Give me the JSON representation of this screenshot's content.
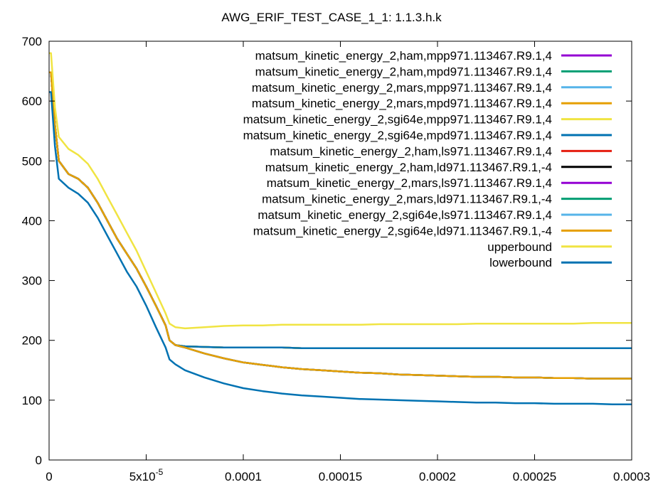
{
  "chart_data": {
    "type": "line",
    "title": "AWG_ERIF_TEST_CASE_1_1: 1.1.3.h.k",
    "xlabel": "",
    "ylabel": "",
    "xlim": [
      0,
      0.0003
    ],
    "ylim": [
      0,
      700
    ],
    "grid": false,
    "legend_position": "top-right",
    "x_ticks": [
      {
        "value": 0,
        "label": "0"
      },
      {
        "value": 5e-05,
        "label": "5x10",
        "sup": "-5"
      },
      {
        "value": 0.0001,
        "label": "0.0001"
      },
      {
        "value": 0.00015,
        "label": "0.00015"
      },
      {
        "value": 0.0002,
        "label": "0.0002"
      },
      {
        "value": 0.00025,
        "label": "0.00025"
      },
      {
        "value": 0.0003,
        "label": "0.0003"
      }
    ],
    "y_ticks": [
      {
        "value": 0,
        "label": "0"
      },
      {
        "value": 100,
        "label": "100"
      },
      {
        "value": 200,
        "label": "200"
      },
      {
        "value": 300,
        "label": "300"
      },
      {
        "value": 400,
        "label": "400"
      },
      {
        "value": 500,
        "label": "500"
      },
      {
        "value": 600,
        "label": "600"
      },
      {
        "value": 700,
        "label": "700"
      }
    ],
    "x": [
      0,
      1e-06,
      3e-06,
      5e-06,
      1e-05,
      1.5e-05,
      2e-05,
      2.5e-05,
      3e-05,
      3.5e-05,
      4e-05,
      4.5e-05,
      5e-05,
      5.5e-05,
      6e-05,
      6.2e-05,
      6.5e-05,
      7e-05,
      8e-05,
      9e-05,
      0.0001,
      0.00011,
      0.00012,
      0.00013,
      0.00014,
      0.00015,
      0.00016,
      0.00017,
      0.00018,
      0.00019,
      0.0002,
      0.00021,
      0.00022,
      0.00023,
      0.00024,
      0.00025,
      0.00026,
      0.00027,
      0.00028,
      0.00029,
      0.0003
    ],
    "series": [
      {
        "name": "matsum_kinetic_energy_2,ham,mpp971.113467.R9.1,4",
        "color": "#9400d3",
        "values": [
          648,
          648,
          560,
          500,
          478,
          470,
          455,
          430,
          400,
          370,
          345,
          320,
          290,
          258,
          225,
          200,
          192,
          190,
          189,
          188,
          188,
          188,
          188,
          187,
          187,
          187,
          187,
          187,
          187,
          187,
          187,
          187,
          187,
          187,
          187,
          187,
          187,
          187,
          187,
          187,
          187
        ]
      },
      {
        "name": "matsum_kinetic_energy_2,ham,mpd971.113467.R9.1,4",
        "color": "#009e73",
        "values": [
          648,
          648,
          560,
          500,
          478,
          470,
          455,
          430,
          400,
          370,
          345,
          320,
          290,
          258,
          225,
          200,
          192,
          190,
          189,
          188,
          188,
          188,
          188,
          187,
          187,
          187,
          187,
          187,
          187,
          187,
          187,
          187,
          187,
          187,
          187,
          187,
          187,
          187,
          187,
          187,
          187
        ]
      },
      {
        "name": "matsum_kinetic_energy_2,mars,mpp971.113467.R9.1,4",
        "color": "#56b4e9",
        "values": [
          648,
          648,
          560,
          500,
          478,
          470,
          455,
          430,
          400,
          370,
          345,
          320,
          290,
          258,
          225,
          200,
          192,
          190,
          189,
          188,
          188,
          188,
          188,
          187,
          187,
          187,
          187,
          187,
          187,
          187,
          187,
          187,
          187,
          187,
          187,
          187,
          187,
          187,
          187,
          187,
          187
        ]
      },
      {
        "name": "matsum_kinetic_energy_2,mars,mpd971.113467.R9.1,4",
        "color": "#e69f00",
        "values": [
          648,
          648,
          560,
          500,
          478,
          470,
          455,
          430,
          400,
          370,
          345,
          320,
          290,
          258,
          225,
          200,
          192,
          190,
          189,
          188,
          188,
          188,
          188,
          187,
          187,
          187,
          187,
          187,
          187,
          187,
          187,
          187,
          187,
          187,
          187,
          187,
          187,
          187,
          187,
          187,
          187
        ]
      },
      {
        "name": "matsum_kinetic_energy_2,sgi64e,mpp971.113467.R9.1,4",
        "color": "#f0e442",
        "values": [
          648,
          648,
          560,
          500,
          478,
          470,
          455,
          430,
          400,
          370,
          345,
          320,
          290,
          258,
          225,
          200,
          192,
          190,
          189,
          188,
          188,
          188,
          188,
          187,
          187,
          187,
          187,
          187,
          187,
          187,
          187,
          187,
          187,
          187,
          187,
          187,
          187,
          187,
          187,
          187,
          187
        ]
      },
      {
        "name": "matsum_kinetic_energy_2,sgi64e,mpd971.113467.R9.1,4",
        "color": "#0072b2",
        "values": [
          648,
          648,
          560,
          500,
          478,
          470,
          455,
          430,
          400,
          370,
          345,
          320,
          290,
          258,
          225,
          200,
          192,
          190,
          189,
          188,
          188,
          188,
          188,
          187,
          187,
          187,
          187,
          187,
          187,
          187,
          187,
          187,
          187,
          187,
          187,
          187,
          187,
          187,
          187,
          187,
          187
        ]
      },
      {
        "name": "matsum_kinetic_energy_2,ham,ls971.113467.R9.1,4",
        "color": "#e51e10",
        "values": [
          648,
          648,
          560,
          500,
          478,
          470,
          455,
          430,
          400,
          370,
          345,
          320,
          290,
          258,
          225,
          200,
          192,
          188,
          178,
          170,
          163,
          159,
          155,
          152,
          150,
          148,
          146,
          145,
          143,
          142,
          141,
          140,
          139,
          139,
          138,
          138,
          137,
          137,
          136,
          136,
          136
        ]
      },
      {
        "name": "matsum_kinetic_energy_2,ham,ld971.113467.R9.1,-4",
        "color": "#000000",
        "values": [
          648,
          648,
          560,
          500,
          478,
          470,
          455,
          430,
          400,
          370,
          345,
          320,
          290,
          258,
          225,
          200,
          192,
          188,
          178,
          170,
          163,
          159,
          155,
          152,
          150,
          148,
          146,
          145,
          143,
          142,
          141,
          140,
          139,
          139,
          138,
          138,
          137,
          137,
          136,
          136,
          136
        ]
      },
      {
        "name": "matsum_kinetic_energy_2,mars,ls971.113467.R9.1,4",
        "color": "#9400d3",
        "values": [
          648,
          648,
          560,
          500,
          478,
          470,
          455,
          430,
          400,
          370,
          345,
          320,
          290,
          258,
          225,
          200,
          192,
          188,
          178,
          170,
          163,
          159,
          155,
          152,
          150,
          148,
          146,
          145,
          143,
          142,
          141,
          140,
          139,
          139,
          138,
          138,
          137,
          137,
          136,
          136,
          136
        ]
      },
      {
        "name": "matsum_kinetic_energy_2,mars,ld971.113467.R9.1,-4",
        "color": "#009e73",
        "values": [
          648,
          648,
          560,
          500,
          478,
          470,
          455,
          430,
          400,
          370,
          345,
          320,
          290,
          258,
          225,
          200,
          192,
          188,
          178,
          170,
          163,
          159,
          155,
          152,
          150,
          148,
          146,
          145,
          143,
          142,
          141,
          140,
          139,
          139,
          138,
          138,
          137,
          137,
          136,
          136,
          136
        ]
      },
      {
        "name": "matsum_kinetic_energy_2,sgi64e,ls971.113467.R9.1,4",
        "color": "#56b4e9",
        "values": [
          648,
          648,
          560,
          500,
          478,
          470,
          455,
          430,
          400,
          370,
          345,
          320,
          290,
          258,
          225,
          200,
          192,
          188,
          178,
          170,
          163,
          159,
          155,
          152,
          150,
          148,
          146,
          145,
          143,
          142,
          141,
          140,
          139,
          139,
          138,
          138,
          137,
          137,
          136,
          136,
          136
        ]
      },
      {
        "name": "matsum_kinetic_energy_2,sgi64e,ld971.113467.R9.1,-4",
        "color": "#e69f00",
        "values": [
          648,
          648,
          560,
          500,
          478,
          470,
          455,
          430,
          400,
          370,
          345,
          320,
          290,
          258,
          225,
          200,
          192,
          188,
          178,
          170,
          163,
          159,
          155,
          152,
          150,
          148,
          146,
          145,
          143,
          142,
          141,
          140,
          139,
          139,
          138,
          138,
          137,
          137,
          136,
          136,
          136
        ]
      },
      {
        "name": "upperbound",
        "color": "#f0e442",
        "values": [
          680,
          680,
          590,
          540,
          520,
          510,
          495,
          470,
          440,
          410,
          380,
          350,
          315,
          280,
          245,
          228,
          222,
          220,
          222,
          224,
          225,
          225,
          226,
          226,
          226,
          226,
          226,
          227,
          227,
          227,
          227,
          227,
          228,
          228,
          228,
          228,
          228,
          228,
          229,
          229,
          229
        ]
      },
      {
        "name": "lowerbound",
        "color": "#0072b2",
        "values": [
          615,
          615,
          525,
          470,
          455,
          445,
          430,
          405,
          375,
          345,
          315,
          290,
          258,
          222,
          188,
          168,
          160,
          150,
          138,
          128,
          120,
          115,
          111,
          108,
          106,
          104,
          102,
          101,
          100,
          99,
          98,
          97,
          96,
          96,
          95,
          95,
          94,
          94,
          94,
          93,
          93
        ]
      }
    ]
  }
}
